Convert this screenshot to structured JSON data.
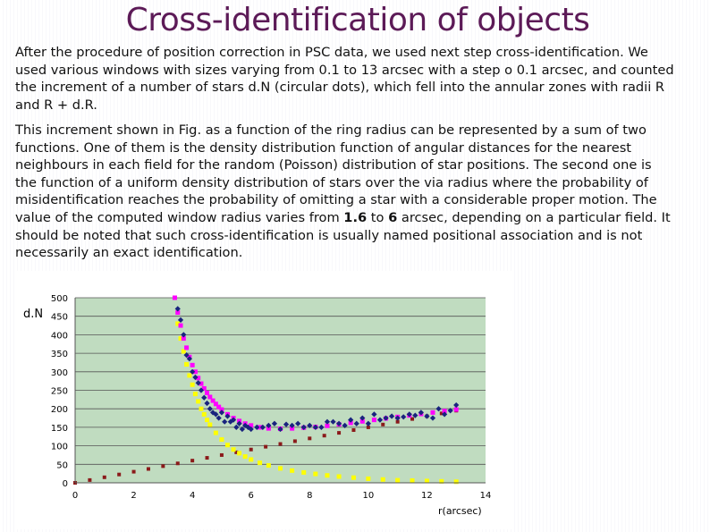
{
  "slide": {
    "title": "Cross-identification of objects",
    "p1": "After the procedure of position correction in PSC data, we used next step cross-identification. We used various windows with sizes varying from 0.1 to 13 arcsec with a step o 0.1 arcsec, and counted the increment of a number of stars d.N (circular dots), which fell into the annular zones with radii R and R + d.R.",
    "p2_a": "This increment shown in Fig. as a function of the ring radius can be represented by a sum of two functions. One of them is the density distribution function of angular distances for the nearest neighbours in each field for the random (Poisson) distribution of star positions. The second one is the function of a uniform density distribution of stars over the via radius where the probability of misidentification reaches the probability of omitting a star with a considerable proper motion. The value of the computed window radius varies from ",
    "p2_b1": "1.6",
    "p2_mid": " to ",
    "p2_b2": "6",
    "p2_c": " arcsec, depending on a particular field. It should be noted that such cross-identification is usually named positional association and is not necessarily an exact identification."
  },
  "chart_data": {
    "type": "scatter",
    "ylabel": "d.N",
    "xlabel": "r(arcsec)",
    "xlim": [
      0,
      14
    ],
    "ylim": [
      0,
      500
    ],
    "x_ticks": [
      "0",
      "2",
      "4",
      "6",
      "8",
      "10",
      "12",
      "14"
    ],
    "y_ticks": [
      "0",
      "50",
      "100",
      "150",
      "200",
      "250",
      "300",
      "350",
      "400",
      "450",
      "500"
    ],
    "grid": "horizontal",
    "plot_background": "#c0dcc0",
    "series": [
      {
        "kind": "points",
        "color": "#1a237e",
        "x": [
          3.5,
          3.6,
          3.7,
          3.8,
          3.9,
          4.0,
          4.1,
          4.2,
          4.3,
          4.4,
          4.5,
          4.6,
          4.7,
          4.8,
          4.9,
          5.0,
          5.1,
          5.2,
          5.3,
          5.4,
          5.5,
          5.6,
          5.7,
          5.8,
          5.9,
          6.0,
          6.2,
          6.4,
          6.6,
          6.8,
          7.0,
          7.2,
          7.4,
          7.6,
          7.8,
          8.0,
          8.2,
          8.4,
          8.6,
          8.8,
          9.0,
          9.2,
          9.4,
          9.6,
          9.8,
          10.0,
          10.2,
          10.4,
          10.6,
          10.8,
          11.0,
          11.2,
          11.4,
          11.6,
          11.8,
          12.0,
          12.2,
          12.4,
          12.6,
          12.8,
          13.0
        ],
        "values": [
          470,
          440,
          400,
          345,
          335,
          300,
          285,
          270,
          250,
          230,
          215,
          200,
          190,
          185,
          175,
          190,
          165,
          180,
          165,
          170,
          150,
          160,
          145,
          155,
          150,
          145,
          150,
          150,
          155,
          160,
          145,
          158,
          155,
          160,
          150,
          155,
          150,
          150,
          165,
          165,
          160,
          155,
          170,
          160,
          175,
          160,
          185,
          170,
          175,
          180,
          175,
          178,
          185,
          182,
          190,
          180,
          175,
          200,
          185,
          195,
          210
        ]
      },
      {
        "kind": "points",
        "color": "#ff00ff",
        "x": [
          3.4,
          3.5,
          3.6,
          3.7,
          3.8,
          3.9,
          4.0,
          4.1,
          4.2,
          4.3,
          4.4,
          4.5,
          4.6,
          4.7,
          4.8,
          4.9,
          5.0,
          5.2,
          5.4,
          5.6,
          5.8,
          6.0,
          6.3,
          6.6,
          7.0,
          7.4,
          7.8,
          8.2,
          8.6,
          9.0,
          9.4,
          9.8,
          10.2,
          10.6,
          11.0,
          11.4,
          11.8,
          12.2,
          12.6,
          13.0
        ],
        "values": [
          500,
          460,
          425,
          390,
          365,
          340,
          318,
          300,
          283,
          268,
          255,
          243,
          232,
          222,
          213,
          205,
          198,
          185,
          175,
          167,
          160,
          155,
          150,
          147,
          146,
          147,
          149,
          151,
          154,
          158,
          162,
          166,
          170,
          174,
          178,
          182,
          186,
          190,
          194,
          198
        ]
      },
      {
        "kind": "points",
        "color": "#ffff00",
        "x": [
          3.5,
          3.6,
          3.7,
          3.8,
          3.9,
          4.0,
          4.1,
          4.2,
          4.3,
          4.4,
          4.5,
          4.6,
          4.8,
          5.0,
          5.2,
          5.4,
          5.6,
          5.8,
          6.0,
          6.3,
          6.6,
          7.0,
          7.4,
          7.8,
          8.2,
          8.6,
          9.0,
          9.5,
          10.0,
          10.5,
          11.0,
          11.5,
          12.0,
          12.5,
          13.0
        ],
        "values": [
          430,
          390,
          355,
          320,
          290,
          265,
          240,
          220,
          200,
          185,
          170,
          157,
          135,
          117,
          102,
          90,
          80,
          71,
          63,
          54,
          47,
          39,
          33,
          28,
          24,
          20,
          17,
          14,
          11,
          9,
          7,
          6,
          5,
          4,
          3
        ]
      },
      {
        "kind": "points",
        "color": "#8b1a1a",
        "x": [
          0,
          0.5,
          1,
          1.5,
          2,
          2.5,
          3,
          3.5,
          4,
          4.5,
          5,
          5.5,
          6,
          6.5,
          7,
          7.5,
          8,
          8.5,
          9,
          9.5,
          10,
          10.5,
          11,
          11.5,
          12,
          12.5,
          13
        ],
        "values": [
          0,
          7.5,
          15,
          22.5,
          30,
          37.5,
          45,
          52.5,
          60,
          67.5,
          75,
          82.5,
          90,
          97.5,
          105,
          112.5,
          120,
          127.5,
          135,
          142.5,
          150,
          157.5,
          165,
          172.5,
          180,
          187.5,
          195
        ]
      }
    ]
  }
}
